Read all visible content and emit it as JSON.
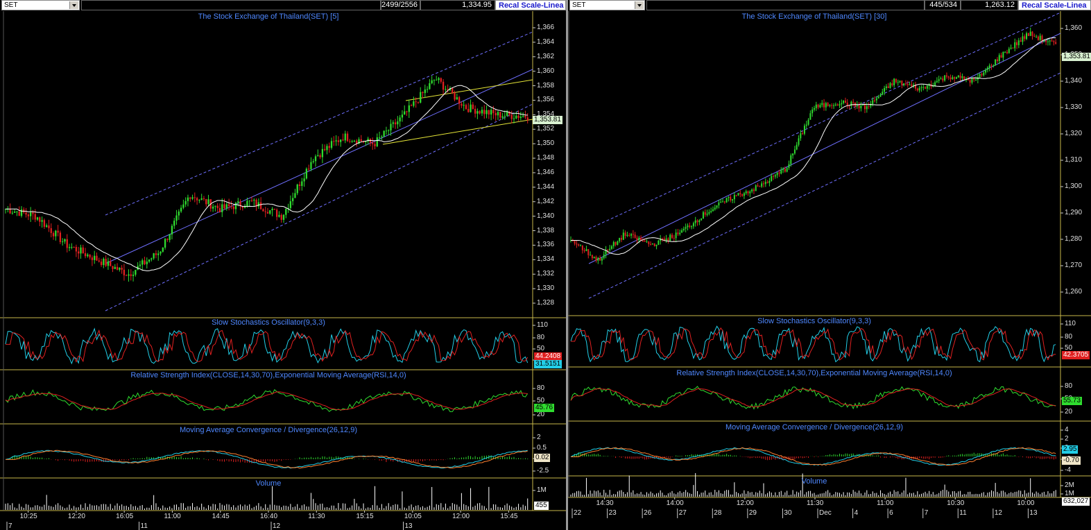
{
  "colors": {
    "up": "#2fdc2f",
    "down": "#e02020",
    "ma": "#ffffff",
    "channel": "#6f6fff",
    "trend": "#e8e838",
    "stoch_k": "#22cfe8",
    "stoch_d": "#e02020",
    "rsi": "#2fdc2f",
    "rsi_ema": "#e02020",
    "macd": "#22cfe8",
    "signal": "#ff8030",
    "volume": "#ffffff",
    "divider": "#c8b84a",
    "title": "#4f88ff"
  },
  "left": {
    "symbol": "SET",
    "bar_count": "2499/2556",
    "price": "1,334.95",
    "recal": "Recal Scale-Linea",
    "main_title": "The Stock Exchange of Thailand(SET) [5]",
    "y_ticks": [
      "1,366",
      "1,364",
      "1,362",
      "1,360",
      "1,358",
      "1,356",
      "1,354",
      "1,352",
      "1,350",
      "1,348",
      "1,346",
      "1,344",
      "1,342",
      "1,340",
      "1,338",
      "1,336",
      "1,334",
      "1,332",
      "1,330",
      "1,328"
    ],
    "last_price": "1,353.81",
    "stoch_title": "Slow Stochastics Oscillator(9,3,3)",
    "stoch_ticks": [
      "110",
      "80",
      "50",
      "20"
    ],
    "stoch_k": "44.2408",
    "stoch_d": "31.5151",
    "rsi_title": "Relative Strength Index(CLOSE,14,30,70),Exponential Moving Average(RSI,14,0)",
    "rsi_ticks": [
      "80",
      "50",
      "20"
    ],
    "rsi_val": "45.76",
    "macd_title": "Moving Average Convergence / Divergence(26,12,9)",
    "macd_ticks": [
      "2",
      "0.5",
      "-1",
      "-2.5"
    ],
    "macd_val": "0.02",
    "vol_title": "Volume",
    "vol_ticks": [
      "1M"
    ],
    "vol_val": "455",
    "time_labels": [
      "10:25",
      "12:20",
      "16:05",
      "11:00",
      "14:45",
      "16:40",
      "11:30",
      "15:15",
      "10:05",
      "12:00",
      "15:45"
    ],
    "day_labels": [
      "7",
      "11",
      "12",
      "13"
    ]
  },
  "right": {
    "symbol": "SET",
    "bar_count": "445/534",
    "price": "1,263.12",
    "recal": "Recal Scale-Linea",
    "main_title": "The Stock Exchange of Thailand(SET) [30]",
    "y_ticks": [
      "1,360",
      "1,350",
      "1,340",
      "1,330",
      "1,320",
      "1,310",
      "1,300",
      "1,290",
      "1,280",
      "1,270",
      "1,260"
    ],
    "last_price": "1,353.81",
    "stoch_title": "Slow Stochastics Oscillator(9,3,3)",
    "stoch_ticks": [
      "110",
      "80",
      "50"
    ],
    "stoch_k": "42.3705",
    "rsi_title": "Relative Strength Index(CLOSE,14,30,70),Exponential Moving Average(RSI,14,0)",
    "rsi_ticks": [
      "80",
      "50",
      "20"
    ],
    "rsi_val": "55.73",
    "macd_title": "Moving Average Convergence / Divergence(26,12,9)",
    "macd_ticks": [
      "4",
      "2",
      "0",
      "-2",
      "-4"
    ],
    "macd_val": "2.95",
    "macd_val2": "-0.70",
    "vol_title": "Volume",
    "vol_ticks": [
      "2M",
      "1M"
    ],
    "vol_val": "632,027",
    "time_labels": [
      "14:30",
      "14:00",
      "12:00",
      "11:30",
      "11:00",
      "10:30",
      "10:00"
    ],
    "day_labels": [
      "22",
      "23",
      "26",
      "27",
      "28",
      "29",
      "30",
      "Dec",
      "4",
      "6",
      "7",
      "11",
      "12",
      "13"
    ]
  },
  "chart_data": [
    {
      "type": "line",
      "title": "The Stock Exchange of Thailand(SET) [5]",
      "ylim": [
        1328,
        1366
      ],
      "series": [
        {
          "values": [
            1341,
            1340,
            1336,
            1334,
            1332,
            1335,
            1343,
            1341,
            1342,
            1340,
            1348,
            1351,
            1350,
            1354,
            1359,
            1355,
            1354,
            1353.81
          ]
        }
      ]
    },
    {
      "type": "line",
      "title": "The Stock Exchange of Thailand(SET) [30]",
      "ylim": [
        1255,
        1365
      ],
      "series": [
        {
          "values": [
            1280,
            1272,
            1282,
            1278,
            1282,
            1290,
            1296,
            1300,
            1307,
            1330,
            1332,
            1330,
            1340,
            1337,
            1342,
            1340,
            1350,
            1358,
            1353.81
          ]
        }
      ]
    }
  ]
}
